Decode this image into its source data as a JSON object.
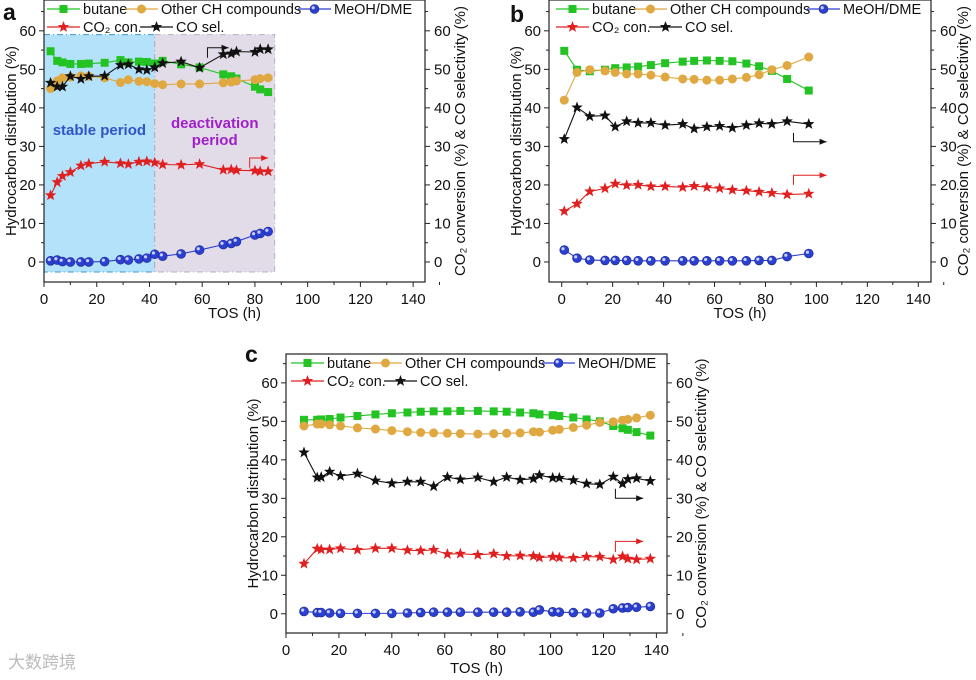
{
  "chart_data": [
    {
      "type": "line",
      "panel_label": "a",
      "xlabel": "TOS (h)",
      "ylabel": "Hydrocarbon distribution (%)",
      "y2label": "CO₂ conversion (%) & CO selectivity (%)",
      "xlim": [
        0,
        144.5
      ],
      "ylim": [
        -5.2,
        68
      ],
      "xticks": [
        "0",
        "20",
        "40",
        "60",
        "80",
        "100",
        "120",
        "140"
      ],
      "yticks": [
        "0",
        "10",
        "20",
        "30",
        "40",
        "50",
        "60"
      ],
      "legend": "top",
      "regions": [
        {
          "label": "stable period",
          "x": [
            0,
            42
          ],
          "y": [
            -2.6,
            59
          ],
          "color": "#b4e2fb",
          "label_color": "#2f55c8"
        },
        {
          "label_lines": [
            "deactivation",
            "period"
          ],
          "x": [
            42,
            87.5
          ],
          "y": [
            -2.6,
            59
          ],
          "color": "#e2dbe8",
          "label_color": "#a020c8"
        }
      ],
      "axis_arrows": [
        {
          "series": "CO sel.",
          "color": "#111111",
          "from": [
            62,
            53
          ],
          "corner": [
            62,
            55.6
          ],
          "to": [
            70,
            55.6
          ]
        },
        {
          "series": "CO₂ con.",
          "color": "#e02020",
          "from": [
            78,
            24.5
          ],
          "corner": [
            78,
            27
          ],
          "to": [
            85,
            27
          ]
        }
      ],
      "x": [
        2.5,
        5,
        7,
        10,
        14,
        17,
        23,
        29,
        32,
        36,
        39,
        42,
        45,
        52,
        59,
        68,
        71,
        73,
        80,
        82,
        85
      ],
      "series": [
        {
          "name": "butane",
          "color": "#22c322",
          "marker": "square",
          "values": [
            54.7,
            52.2,
            51.8,
            51.4,
            51.4,
            51.5,
            51.7,
            52.4,
            51.8,
            52,
            51.9,
            51.5,
            52.2,
            51.3,
            50.5,
            48.7,
            48.2,
            47.6,
            45.5,
            44.8,
            44.1
          ]
        },
        {
          "name": "Other CH compounds",
          "color": "#e0a840",
          "marker": "circle",
          "values": [
            45,
            47,
            47.8,
            48,
            48.3,
            48.2,
            47.8,
            46.6,
            47.3,
            46.9,
            46.8,
            46.3,
            46,
            46.2,
            46.2,
            46.5,
            46.7,
            47,
            47.3,
            47.6,
            47.8
          ]
        },
        {
          "name": "MeOH/DME",
          "color": "#2b3fd0",
          "marker": "ball",
          "values": [
            0.3,
            0.5,
            0.1,
            0,
            0,
            0,
            0.1,
            0.6,
            0.5,
            0.8,
            1,
            2,
            1.5,
            2.1,
            3.1,
            4.5,
            4.8,
            5.3,
            7,
            7.4,
            7.9
          ]
        },
        {
          "name": "CO₂ con.",
          "color": "#e02020",
          "marker": "star",
          "axis": "right",
          "values": [
            17.3,
            20.7,
            22.3,
            23.3,
            25,
            25.5,
            26,
            25.6,
            25.4,
            26,
            26.1,
            25.8,
            25.3,
            25.2,
            25.4,
            23.9,
            24,
            23.8,
            23.7,
            23.5,
            23.5
          ]
        },
        {
          "name": "CO sel.",
          "color": "#111111",
          "marker": "star",
          "axis": "right",
          "values": [
            46.5,
            45.5,
            45.5,
            48.2,
            47.5,
            48.2,
            48.3,
            51.1,
            51.3,
            50,
            49.8,
            50.5,
            51.6,
            52,
            50.4,
            53.9,
            54.1,
            54.6,
            54.5,
            55.2,
            55.2
          ]
        }
      ]
    },
    {
      "type": "line",
      "panel_label": "b",
      "xlabel": "TOS (h)",
      "ylabel": "Hydrocarbon distribution (%)",
      "y2label": "CO₂ conversion (%) & CO selectivity (%)",
      "xlim": [
        -5,
        145
      ],
      "ylim": [
        -5.2,
        68
      ],
      "xticks": [
        "0",
        "20",
        "40",
        "60",
        "80",
        "100",
        "120",
        "140"
      ],
      "yticks": [
        "0",
        "10",
        "20",
        "30",
        "40",
        "50",
        "60"
      ],
      "legend": "top",
      "axis_arrows": [
        {
          "series": "CO sel.",
          "color": "#111111",
          "from": [
            91,
            33.5
          ],
          "corner": [
            91,
            31.2
          ],
          "to": [
            104,
            31.2
          ]
        },
        {
          "series": "CO₂ con.",
          "color": "#e02020",
          "from": [
            91,
            20
          ],
          "corner": [
            91,
            22.5
          ],
          "to": [
            104,
            22.5
          ]
        }
      ],
      "x": [
        1,
        6,
        11,
        17,
        21,
        25.5,
        30,
        35,
        40.6,
        47.5,
        52,
        57,
        62,
        67,
        72.5,
        77.5,
        82.5,
        88.5,
        97
      ],
      "series": [
        {
          "name": "butane",
          "color": "#22c322",
          "marker": "square",
          "values": [
            54.8,
            49.9,
            49.5,
            49.9,
            50.3,
            50.5,
            50.7,
            51.1,
            51.6,
            52,
            52.2,
            52.3,
            52.2,
            52.1,
            51.5,
            50.8,
            49.6,
            47.5,
            44.5
          ]
        },
        {
          "name": "Other CH compounds",
          "color": "#e0a840",
          "marker": "circle",
          "values": [
            42,
            49.2,
            49.9,
            49.6,
            49.2,
            48.8,
            48.8,
            48.5,
            48,
            47.5,
            47.4,
            47.2,
            47.2,
            47.5,
            47.9,
            48.6,
            49.9,
            51,
            53.2
          ]
        },
        {
          "name": "MeOH/DME",
          "color": "#2b3fd0",
          "marker": "ball",
          "values": [
            3.1,
            1,
            0.5,
            0.4,
            0.4,
            0.4,
            0.3,
            0.3,
            0.3,
            0.3,
            0.3,
            0.3,
            0.3,
            0.3,
            0.3,
            0.4,
            0.4,
            1.4,
            2.2
          ]
        },
        {
          "name": "CO₂ con.",
          "color": "#e02020",
          "marker": "star",
          "axis": "right",
          "values": [
            13.2,
            15.1,
            18.3,
            19.1,
            20.3,
            19.9,
            20,
            19.6,
            19.6,
            19.4,
            19.7,
            19.4,
            19.1,
            18.7,
            18.5,
            18.2,
            17.9,
            17.5,
            17.7
          ]
        },
        {
          "name": "CO sel.",
          "color": "#111111",
          "marker": "star",
          "axis": "right",
          "values": [
            31.9,
            40.1,
            37.8,
            38,
            35.1,
            36.5,
            36.1,
            36.1,
            35.5,
            35.8,
            34.6,
            35.1,
            35.3,
            34.8,
            35.5,
            36,
            35.8,
            36.5,
            35.8
          ]
        }
      ]
    },
    {
      "type": "line",
      "panel_label": "c",
      "xlabel": "TOS (h)",
      "ylabel": "Hydrocarbon distribution (%)",
      "y2label": "CO₂ conversion (%) & CO selectivity (%)",
      "xlim": [
        0,
        144
      ],
      "ylim": [
        -5,
        67.5
      ],
      "xticks": [
        "0",
        "20",
        "40",
        "60",
        "80",
        "100",
        "120",
        "140"
      ],
      "yticks": [
        "0",
        "10",
        "20",
        "30",
        "40",
        "50",
        "60"
      ],
      "legend": "top",
      "axis_arrows": [
        {
          "series": "CO sel.",
          "color": "#111111",
          "from": [
            124.5,
            32.5
          ],
          "corner": [
            124.5,
            30
          ],
          "to": [
            135,
            30
          ]
        },
        {
          "series": "CO₂ con.",
          "color": "#e02020",
          "from": [
            124.5,
            16
          ],
          "corner": [
            124.5,
            18.8
          ],
          "to": [
            135,
            18.8
          ]
        }
      ],
      "x": [
        6.8,
        11.8,
        13.3,
        16.5,
        20.6,
        27,
        33.8,
        40,
        45.9,
        50.9,
        55.8,
        61,
        65.9,
        72.5,
        78.5,
        83.4,
        88.5,
        93.5,
        95.8,
        100.8,
        103.3,
        108.6,
        113.6,
        118.6,
        123.7,
        127.2,
        129.2,
        132.5,
        137.7
      ],
      "series": [
        {
          "name": "butane",
          "color": "#22c322",
          "marker": "square",
          "values": [
            50.4,
            50.4,
            50.5,
            50.6,
            51,
            51.4,
            51.8,
            52.1,
            52.3,
            52.5,
            52.6,
            52.6,
            52.7,
            52.7,
            52.6,
            52.5,
            52.3,
            52.1,
            51.8,
            51.6,
            51.4,
            51,
            50.5,
            50,
            48.8,
            48.2,
            47.8,
            47.2,
            46.3
          ]
        },
        {
          "name": "Other CH compounds",
          "color": "#e0a840",
          "marker": "circle",
          "values": [
            48.8,
            49.3,
            49.3,
            49.1,
            48.8,
            48.3,
            48,
            47.6,
            47.3,
            47.1,
            47,
            46.9,
            46.8,
            46.7,
            46.8,
            46.9,
            47,
            47.3,
            47.2,
            47.7,
            47.9,
            48.4,
            49,
            49.7,
            49.9,
            50.3,
            50.5,
            50.9,
            51.6
          ]
        },
        {
          "name": "MeOH/DME",
          "color": "#2b3fd0",
          "marker": "ball",
          "values": [
            0.6,
            0.3,
            0.3,
            0.2,
            0.1,
            0.1,
            0.1,
            0.1,
            0.2,
            0.3,
            0.4,
            0.4,
            0.4,
            0.4,
            0.4,
            0.4,
            0.5,
            0.4,
            1,
            0.5,
            0.4,
            0.3,
            0.2,
            0.2,
            1.3,
            1.5,
            1.6,
            1.7,
            1.9
          ]
        },
        {
          "name": "CO₂ con.",
          "color": "#e02020",
          "marker": "star",
          "axis": "right",
          "values": [
            13,
            16.9,
            16.7,
            16.7,
            17,
            16.6,
            17,
            17,
            16.5,
            16.4,
            16.6,
            15.5,
            15.6,
            15.3,
            15.6,
            15,
            15.1,
            15,
            14.6,
            14.8,
            14.6,
            14.5,
            14.8,
            14.8,
            14.1,
            14.9,
            14.3,
            14.1,
            14.3
          ]
        },
        {
          "name": "CO sel.",
          "color": "#111111",
          "marker": "star",
          "axis": "right",
          "values": [
            41.9,
            35.4,
            35.5,
            36.9,
            35.8,
            36.4,
            34.6,
            33.9,
            34.3,
            34.3,
            33.1,
            35.5,
            34.9,
            35.4,
            34.3,
            35.5,
            34.8,
            35.1,
            36,
            35.3,
            35.3,
            34.7,
            33.8,
            33.6,
            35.6,
            33.8,
            35,
            35.2,
            34.5
          ]
        }
      ]
    }
  ],
  "watermark": "大数跨境"
}
